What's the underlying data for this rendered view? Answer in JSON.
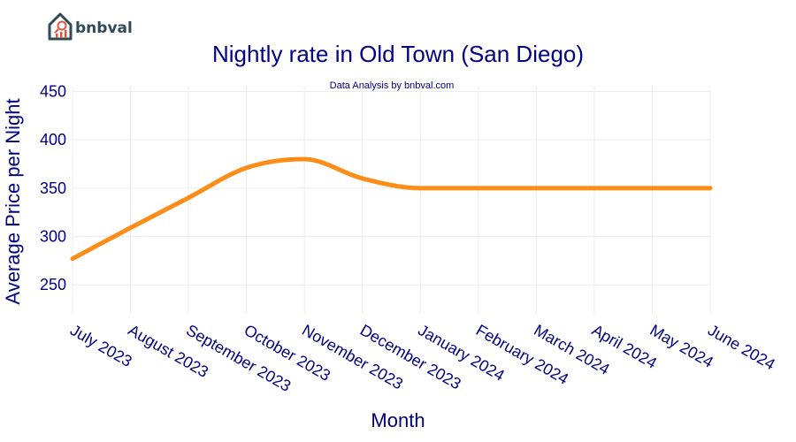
{
  "brand": {
    "name": "bnbval"
  },
  "colors": {
    "line": "#FF8C16",
    "text": "#000080",
    "grid": "#ECECEC",
    "logo": "#2F4A57",
    "logo_accent": "#E8543A"
  },
  "chart_data": {
    "type": "line",
    "title": "Nightly rate in Old Town (San Diego)",
    "subtitle": "Data Analysis by bnbval.com",
    "xlabel": "Month",
    "ylabel": "Average Price per Night",
    "categories": [
      "July 2023",
      "August 2023",
      "September 2023",
      "October 2023",
      "November 2023",
      "December 2023",
      "January 2024",
      "February 2024",
      "March 2024",
      "April 2024",
      "May 2024",
      "June 2024"
    ],
    "yticks": [
      250,
      300,
      350,
      400,
      450
    ],
    "ylim": [
      220,
      455
    ],
    "grid": true,
    "series": [
      {
        "values": [
          277,
          309,
          340,
          371,
          380,
          360,
          350,
          350,
          350,
          350,
          350,
          350
        ]
      }
    ]
  }
}
